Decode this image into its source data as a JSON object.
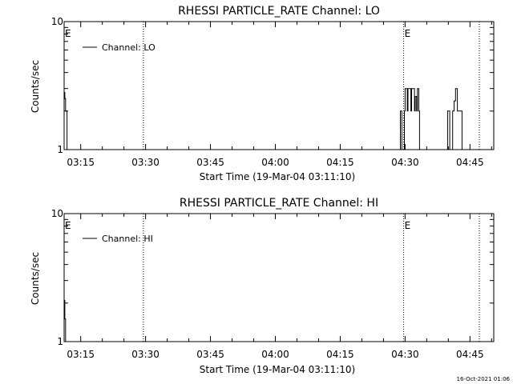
{
  "footer": {
    "timestamp": "16-Oct-2021 01:06"
  },
  "chart_data": [
    {
      "type": "line",
      "title": "RHESSI PARTICLE_RATE Channel: LO",
      "xlabel": "Start Time (19-Mar-04 03:11:10)",
      "ylabel": "Counts/sec",
      "x_unit": "time (HH:MM UT)",
      "xlim": [
        "03:11:10",
        "04:50:30"
      ],
      "x_tick_labels": [
        "03:15",
        "03:30",
        "03:45",
        "04:00",
        "04:15",
        "04:30",
        "04:45"
      ],
      "y_scale": "log",
      "ylim": [
        1,
        10
      ],
      "y_tick_labels": [
        "1",
        "10"
      ],
      "grid": false,
      "legend": {
        "position": "top-left",
        "entries": [
          "Channel: LO"
        ]
      },
      "annotations": [
        {
          "text": "E",
          "x": "03:11:10"
        },
        {
          "text": "E",
          "x": "04:29:40"
        }
      ],
      "eclipse_markers": [
        "03:29:30",
        "04:29:40",
        "04:47:10"
      ],
      "series": [
        {
          "name": "Channel: LO",
          "points": [
            [
              "03:11:10",
              2.8
            ],
            [
              "03:11:20",
              2.5
            ],
            [
              "03:11:30",
              2.0
            ],
            [
              "03:11:40",
              2.0
            ],
            [
              "03:11:50",
              1.0
            ],
            [
              "04:28:50",
              1.0
            ],
            [
              "04:28:55",
              2.0
            ],
            [
              "04:29:05",
              2.0
            ],
            [
              "04:29:15",
              1.0
            ],
            [
              "04:29:45",
              1.0
            ],
            [
              "04:29:50",
              2.0
            ],
            [
              "04:30:00",
              3.0
            ],
            [
              "04:30:20",
              3.0
            ],
            [
              "04:30:30",
              2.0
            ],
            [
              "04:30:40",
              3.0
            ],
            [
              "04:31:10",
              3.0
            ],
            [
              "04:31:20",
              2.0
            ],
            [
              "04:31:30",
              3.0
            ],
            [
              "04:32:00",
              3.0
            ],
            [
              "04:32:10",
              2.0
            ],
            [
              "04:32:20",
              2.6
            ],
            [
              "04:32:40",
              2.0
            ],
            [
              "04:32:50",
              3.0
            ],
            [
              "04:33:10",
              2.0
            ],
            [
              "04:33:20",
              1.0
            ],
            [
              "04:39:40",
              1.0
            ],
            [
              "04:39:50",
              2.0
            ],
            [
              "04:40:10",
              2.0
            ],
            [
              "04:40:20",
              1.0
            ],
            [
              "04:40:50",
              1.0
            ],
            [
              "04:41:00",
              2.0
            ],
            [
              "04:41:20",
              2.4
            ],
            [
              "04:41:40",
              3.0
            ],
            [
              "04:41:55",
              3.0
            ],
            [
              "04:42:05",
              2.0
            ],
            [
              "04:42:20",
              2.0
            ],
            [
              "04:42:30",
              2.0
            ],
            [
              "04:43:00",
              2.0
            ],
            [
              "04:43:10",
              1.0
            ]
          ]
        }
      ]
    },
    {
      "type": "line",
      "title": "RHESSI PARTICLE_RATE Channel: HI",
      "xlabel": "Start Time (19-Mar-04 03:11:10)",
      "ylabel": "Counts/sec",
      "x_unit": "time (HH:MM UT)",
      "xlim": [
        "03:11:10",
        "04:50:30"
      ],
      "x_tick_labels": [
        "03:15",
        "03:30",
        "03:45",
        "04:00",
        "04:15",
        "04:30",
        "04:45"
      ],
      "y_scale": "log",
      "ylim": [
        1,
        10
      ],
      "y_tick_labels": [
        "1",
        "10"
      ],
      "grid": false,
      "legend": {
        "position": "top-left",
        "entries": [
          "Channel: HI"
        ]
      },
      "annotations": [
        {
          "text": "E",
          "x": "03:11:10"
        },
        {
          "text": "E",
          "x": "04:29:40"
        }
      ],
      "eclipse_markers": [
        "03:29:30",
        "04:29:40",
        "04:47:10"
      ],
      "series": [
        {
          "name": "Channel: HI",
          "points": [
            [
              "03:11:10",
              2.1
            ],
            [
              "03:11:20",
              1.5
            ],
            [
              "03:11:30",
              1.0
            ]
          ]
        }
      ]
    }
  ]
}
